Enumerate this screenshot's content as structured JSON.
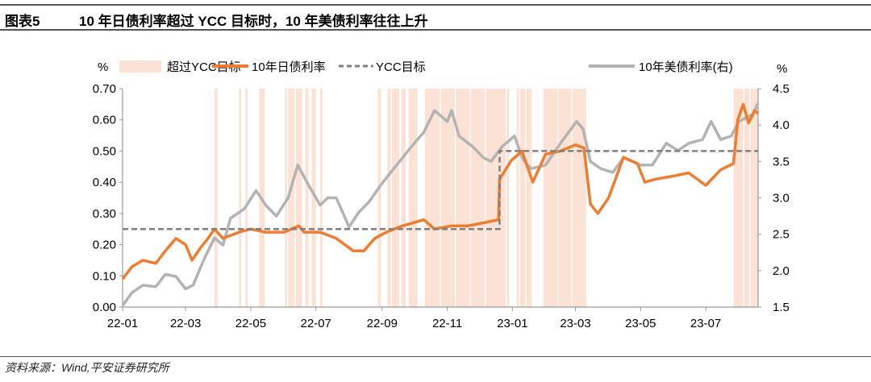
{
  "header": {
    "figure_label": "图表5",
    "title": "10 年日债利率超过 YCC 目标时，10 年美债利率往往上升"
  },
  "footer": {
    "source": "资料来源：Wind,平安证券研究所"
  },
  "chart_data": {
    "type": "line",
    "left_unit": "%",
    "right_unit": "%",
    "ylim_left": [
      0,
      0.7
    ],
    "ylim_right": [
      1.5,
      4.5
    ],
    "xlim": [
      "2022-01-01",
      "2023-08-19"
    ],
    "yticks_left": [
      "0.00",
      "0.10",
      "0.20",
      "0.30",
      "0.40",
      "0.50",
      "0.60",
      "0.70"
    ],
    "yticks_right": [
      "1.5",
      "2.0",
      "2.5",
      "3.0",
      "3.5",
      "4.0",
      "4.5"
    ],
    "xticks": [
      {
        "label": "22-01",
        "date": "2022-01-01"
      },
      {
        "label": "22-03",
        "date": "2022-03-01"
      },
      {
        "label": "22-05",
        "date": "2022-05-01"
      },
      {
        "label": "22-07",
        "date": "2022-07-01"
      },
      {
        "label": "22-09",
        "date": "2022-09-01"
      },
      {
        "label": "22-11",
        "date": "2022-11-01"
      },
      {
        "label": "23-01",
        "date": "2023-01-01"
      },
      {
        "label": "23-03",
        "date": "2023-03-01"
      },
      {
        "label": "23-05",
        "date": "2023-05-01"
      },
      {
        "label": "23-07",
        "date": "2023-07-01"
      }
    ],
    "grid": false,
    "legend_position": "top",
    "colors": {
      "shade": "#fbe2d4",
      "jp": "#ed7d31",
      "ycc": "#7f7f7f",
      "us": "#b3b3b3"
    },
    "shaded_series": {
      "name": "超过YCC目标",
      "intervals": [
        [
          "2022-03-28",
          "2022-03-31"
        ],
        [
          "2022-04-20",
          "2022-04-22"
        ],
        [
          "2022-04-26",
          "2022-04-28"
        ],
        [
          "2022-05-09",
          "2022-05-14"
        ],
        [
          "2022-06-02",
          "2022-06-04"
        ],
        [
          "2022-06-05",
          "2022-06-11"
        ],
        [
          "2022-06-12",
          "2022-06-18"
        ],
        [
          "2022-06-21",
          "2022-06-24"
        ],
        [
          "2022-06-27",
          "2022-07-01"
        ],
        [
          "2022-07-05",
          "2022-07-07"
        ],
        [
          "2022-08-28",
          "2022-08-31"
        ],
        [
          "2022-09-06",
          "2022-09-09"
        ],
        [
          "2022-09-10",
          "2022-09-17"
        ],
        [
          "2022-09-19",
          "2022-09-23"
        ],
        [
          "2022-09-26",
          "2022-10-04"
        ],
        [
          "2022-10-11",
          "2022-10-25"
        ],
        [
          "2022-10-26",
          "2022-11-08"
        ],
        [
          "2022-11-09",
          "2022-11-22"
        ],
        [
          "2022-11-23",
          "2022-12-06"
        ],
        [
          "2022-12-07",
          "2022-12-26"
        ],
        [
          "2022-12-27",
          "2022-12-29"
        ],
        [
          "2023-01-05",
          "2023-01-07"
        ],
        [
          "2023-01-08",
          "2023-01-13"
        ],
        [
          "2023-01-14",
          "2023-01-19"
        ],
        [
          "2023-01-30",
          "2023-02-12"
        ],
        [
          "2023-02-13",
          "2023-02-25"
        ],
        [
          "2023-02-26",
          "2023-03-11"
        ],
        [
          "2023-07-27",
          "2023-08-05"
        ],
        [
          "2023-08-06",
          "2023-08-11"
        ],
        [
          "2023-08-12",
          "2023-08-19"
        ]
      ]
    },
    "series": [
      {
        "name": "10年日债利率",
        "axis": "left",
        "points": [
          [
            "2022-01-01",
            0.09
          ],
          [
            "2022-01-10",
            0.13
          ],
          [
            "2022-01-20",
            0.15
          ],
          [
            "2022-02-01",
            0.14
          ],
          [
            "2022-02-10",
            0.18
          ],
          [
            "2022-02-20",
            0.22
          ],
          [
            "2022-03-01",
            0.2
          ],
          [
            "2022-03-07",
            0.15
          ],
          [
            "2022-03-15",
            0.19
          ],
          [
            "2022-03-22",
            0.22
          ],
          [
            "2022-03-28",
            0.25
          ],
          [
            "2022-04-05",
            0.22
          ],
          [
            "2022-04-20",
            0.24
          ],
          [
            "2022-05-01",
            0.25
          ],
          [
            "2022-05-15",
            0.24
          ],
          [
            "2022-06-01",
            0.24
          ],
          [
            "2022-06-15",
            0.26
          ],
          [
            "2022-06-20",
            0.24
          ],
          [
            "2022-07-05",
            0.24
          ],
          [
            "2022-07-20",
            0.22
          ],
          [
            "2022-08-05",
            0.18
          ],
          [
            "2022-08-15",
            0.18
          ],
          [
            "2022-08-25",
            0.22
          ],
          [
            "2022-09-05",
            0.24
          ],
          [
            "2022-09-20",
            0.26
          ],
          [
            "2022-10-10",
            0.28
          ],
          [
            "2022-10-20",
            0.25
          ],
          [
            "2022-11-05",
            0.26
          ],
          [
            "2022-11-20",
            0.26
          ],
          [
            "2022-12-05",
            0.27
          ],
          [
            "2022-12-19",
            0.28
          ],
          [
            "2022-12-20",
            0.41
          ],
          [
            "2022-12-31",
            0.47
          ],
          [
            "2023-01-10",
            0.5
          ],
          [
            "2023-01-20",
            0.4
          ],
          [
            "2023-02-01",
            0.49
          ],
          [
            "2023-02-15",
            0.5
          ],
          [
            "2023-03-01",
            0.52
          ],
          [
            "2023-03-09",
            0.51
          ],
          [
            "2023-03-15",
            0.33
          ],
          [
            "2023-03-22",
            0.3
          ],
          [
            "2023-04-01",
            0.35
          ],
          [
            "2023-04-15",
            0.48
          ],
          [
            "2023-04-28",
            0.46
          ],
          [
            "2023-05-05",
            0.4
          ],
          [
            "2023-05-15",
            0.41
          ],
          [
            "2023-06-01",
            0.42
          ],
          [
            "2023-06-15",
            0.43
          ],
          [
            "2023-07-01",
            0.39
          ],
          [
            "2023-07-15",
            0.44
          ],
          [
            "2023-07-27",
            0.46
          ],
          [
            "2023-07-31",
            0.6
          ],
          [
            "2023-08-05",
            0.65
          ],
          [
            "2023-08-10",
            0.59
          ],
          [
            "2023-08-16",
            0.63
          ],
          [
            "2023-08-19",
            0.62
          ]
        ]
      },
      {
        "name": "YCC目标",
        "axis": "left",
        "step": true,
        "points": [
          [
            "2022-01-01",
            0.25
          ],
          [
            "2022-12-20",
            0.25
          ],
          [
            "2022-12-20",
            0.5
          ],
          [
            "2023-08-19",
            0.5
          ]
        ]
      },
      {
        "name": "10年美债利率(右)",
        "axis": "right",
        "points": [
          [
            "2022-01-01",
            1.52
          ],
          [
            "2022-01-10",
            1.7
          ],
          [
            "2022-01-20",
            1.8
          ],
          [
            "2022-02-01",
            1.78
          ],
          [
            "2022-02-10",
            1.95
          ],
          [
            "2022-02-20",
            1.92
          ],
          [
            "2022-03-01",
            1.75
          ],
          [
            "2022-03-08",
            1.8
          ],
          [
            "2022-03-18",
            2.15
          ],
          [
            "2022-03-28",
            2.45
          ],
          [
            "2022-04-05",
            2.35
          ],
          [
            "2022-04-12",
            2.72
          ],
          [
            "2022-04-25",
            2.85
          ],
          [
            "2022-05-06",
            3.1
          ],
          [
            "2022-05-15",
            2.9
          ],
          [
            "2022-05-25",
            2.75
          ],
          [
            "2022-06-05",
            3.0
          ],
          [
            "2022-06-14",
            3.45
          ],
          [
            "2022-06-25",
            3.15
          ],
          [
            "2022-07-05",
            2.9
          ],
          [
            "2022-07-12",
            3.0
          ],
          [
            "2022-07-20",
            3.0
          ],
          [
            "2022-08-01",
            2.6
          ],
          [
            "2022-08-10",
            2.8
          ],
          [
            "2022-08-20",
            2.95
          ],
          [
            "2022-09-01",
            3.2
          ],
          [
            "2022-09-20",
            3.55
          ],
          [
            "2022-10-01",
            3.75
          ],
          [
            "2022-10-10",
            3.9
          ],
          [
            "2022-10-20",
            4.2
          ],
          [
            "2022-11-01",
            4.05
          ],
          [
            "2022-11-05",
            4.2
          ],
          [
            "2022-11-12",
            3.85
          ],
          [
            "2022-11-25",
            3.7
          ],
          [
            "2022-12-05",
            3.55
          ],
          [
            "2022-12-12",
            3.5
          ],
          [
            "2022-12-22",
            3.7
          ],
          [
            "2023-01-03",
            3.85
          ],
          [
            "2023-01-10",
            3.55
          ],
          [
            "2023-01-18",
            3.4
          ],
          [
            "2023-02-01",
            3.45
          ],
          [
            "2023-02-15",
            3.75
          ],
          [
            "2023-03-02",
            4.05
          ],
          [
            "2023-03-08",
            3.95
          ],
          [
            "2023-03-15",
            3.5
          ],
          [
            "2023-03-25",
            3.4
          ],
          [
            "2023-04-05",
            3.35
          ],
          [
            "2023-04-15",
            3.55
          ],
          [
            "2023-05-01",
            3.45
          ],
          [
            "2023-05-12",
            3.45
          ],
          [
            "2023-05-25",
            3.75
          ],
          [
            "2023-06-05",
            3.65
          ],
          [
            "2023-06-15",
            3.75
          ],
          [
            "2023-06-28",
            3.8
          ],
          [
            "2023-07-06",
            4.05
          ],
          [
            "2023-07-15",
            3.8
          ],
          [
            "2023-07-25",
            3.85
          ],
          [
            "2023-08-01",
            4.05
          ],
          [
            "2023-08-08",
            4.1
          ],
          [
            "2023-08-14",
            4.15
          ],
          [
            "2023-08-19",
            4.3
          ]
        ]
      }
    ]
  }
}
